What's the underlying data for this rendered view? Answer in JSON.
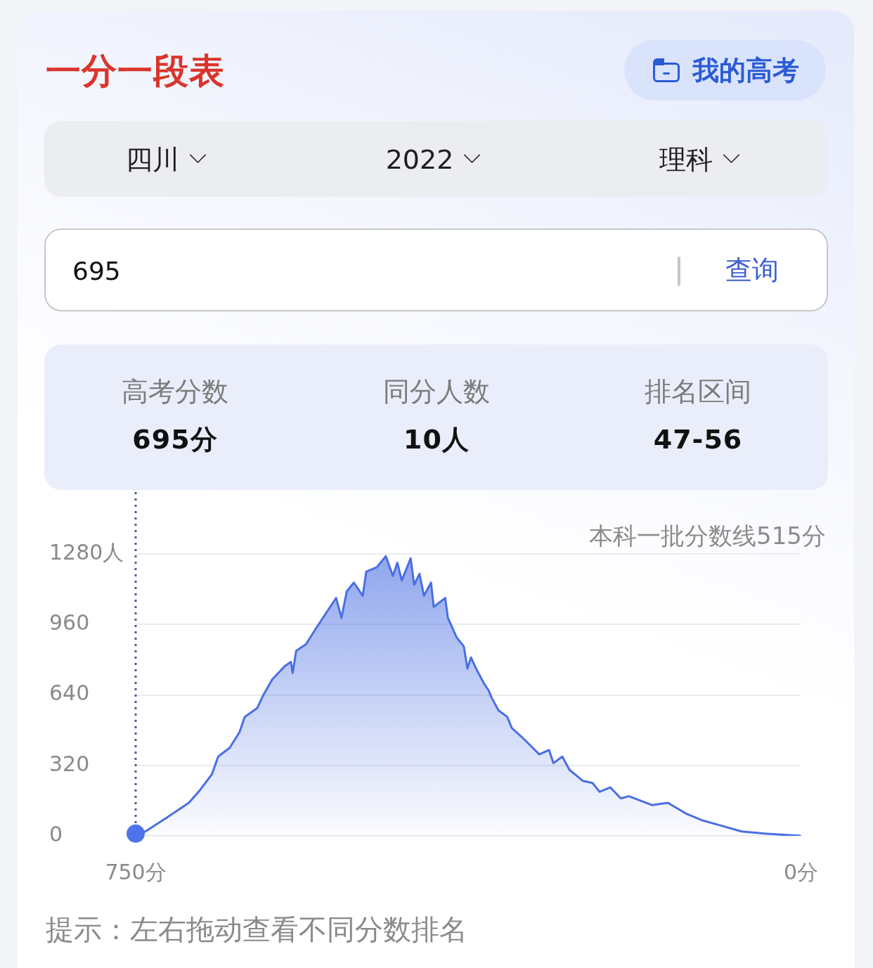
{
  "chart_data": {
    "type": "area",
    "title": "一分一段表",
    "annotations": [
      "本科一批分数线515分",
      "提示：左右拖动查看不同分数排名",
      "我的高考",
      "四川",
      "2022",
      "理科",
      "695",
      "查询",
      "高考分数",
      "695分",
      "同分人数",
      "10人",
      "排名区间",
      "47-56"
    ],
    "xlim": [
      750,
      0
    ],
    "xticks": [
      {
        "value": 750,
        "label": "750分"
      },
      {
        "value": 0,
        "label": "0分"
      }
    ],
    "ylim": [
      0,
      1280
    ],
    "yticks": [
      0,
      320,
      640,
      960,
      {
        "value": 1280,
        "label": "1280人"
      }
    ],
    "grid": "y",
    "ref_lines": [
      {
        "axis": "x",
        "value": 750,
        "color": "#4d5b8c",
        "line_style": "dotted"
      }
    ],
    "series": [
      {
        "color": "#4a6fe3",
        "x": [
          750,
          739,
          716,
          690,
          677,
          664,
          657,
          644,
          633,
          627,
          613,
          606,
          596,
          582,
          575,
          573,
          569,
          558,
          547,
          534,
          524,
          518,
          512,
          504,
          494,
          490,
          478,
          468,
          460,
          455,
          450,
          440,
          436,
          430,
          425,
          417,
          414,
          401,
          398,
          388,
          380,
          376,
          372,
          365,
          357,
          352,
          349,
          341,
          331,
          326,
          315,
          305,
          295,
          284,
          279,
          269,
          261,
          246,
          235,
          227,
          215,
          203,
          194,
          168,
          150,
          129,
          111,
          93,
          67,
          41,
          0
        ],
        "values": [
          10,
          20,
          80,
          150,
          210,
          280,
          360,
          400,
          470,
          540,
          580,
          640,
          710,
          770,
          790,
          740,
          840,
          870,
          940,
          1020,
          1080,
          990,
          1110,
          1150,
          1090,
          1200,
          1220,
          1270,
          1180,
          1240,
          1160,
          1260,
          1140,
          1190,
          1090,
          1150,
          1040,
          1080,
          990,
          900,
          860,
          760,
          810,
          750,
          690,
          660,
          630,
          570,
          540,
          490,
          450,
          410,
          370,
          390,
          330,
          360,
          300,
          250,
          240,
          200,
          220,
          170,
          180,
          140,
          150,
          100,
          70,
          50,
          20,
          10,
          0
        ]
      },
      {
        "type": "scatter",
        "color": "#4d74ea",
        "marker": "circle",
        "x": [
          750
        ],
        "values": [
          10
        ]
      }
    ]
  }
}
